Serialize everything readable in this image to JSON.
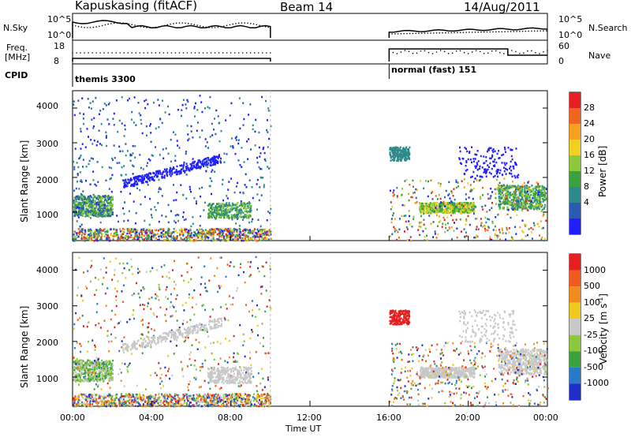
{
  "header": {
    "station": "Kapuskasing (fitACF)",
    "beam": "Beam 14",
    "date": "14/Aug/2011"
  },
  "top_panels": {
    "nsky_label": "N.Sky",
    "nsky_ticks": [
      "10^5",
      "10^0"
    ],
    "nsearch_label": "N.Search",
    "nsearch_ticks": [
      "10^5",
      "10^0"
    ],
    "freq_label_1": "Freq.",
    "freq_label_2": "[MHz]",
    "freq_ticks": [
      "18",
      "8"
    ],
    "nave_label": "Nave",
    "nave_ticks": [
      "60",
      "0"
    ],
    "cpid_label": "CPID",
    "cpid_1": "themis 3300",
    "cpid_2": "normal (fast) 151"
  },
  "chart_data": [
    {
      "type": "heatmap",
      "name": "power",
      "ylabel": "Slant Range [km]",
      "yticks": [
        "4000",
        "3000",
        "2000",
        "1000"
      ],
      "colorbar_label": "Power [dB]",
      "colorbar_ticks": [
        "28",
        "24",
        "20",
        "16",
        "12",
        "8",
        "4"
      ],
      "colors": [
        "#1e1eff",
        "#2a5ab4",
        "#2e8a8a",
        "#3ca03c",
        "#8cc83c",
        "#f0d21e",
        "#f5a01e",
        "#f0641e",
        "#e61e1e"
      ],
      "xrange_hours": [
        0,
        24
      ],
      "yrange_km": [
        180,
        4500
      ]
    },
    {
      "type": "heatmap",
      "name": "velocity",
      "ylabel": "Slant Range [km]",
      "yticks": [
        "4000",
        "3000",
        "2000",
        "1000"
      ],
      "colorbar_label": "Velocity [m s",
      "colorbar_label_sup": "-1",
      "colorbar_label_end": "]",
      "colorbar_ticks": [
        "1000",
        "500",
        "100",
        "25",
        "-25",
        "-100",
        "-500",
        "-1000"
      ],
      "colors": [
        "#1e2ec8",
        "#2a78c8",
        "#3ca03c",
        "#8cc83c",
        "#c8c8c8",
        "#f0c81e",
        "#f08c1e",
        "#f05a1e",
        "#e61e1e"
      ],
      "xrange_hours": [
        0,
        24
      ],
      "yrange_km": [
        180,
        4500
      ]
    }
  ],
  "xaxis": {
    "label": "Time UT",
    "ticks": [
      "00:00",
      "04:00",
      "08:00",
      "12:00",
      "16:00",
      "20:00",
      "00:00"
    ]
  }
}
